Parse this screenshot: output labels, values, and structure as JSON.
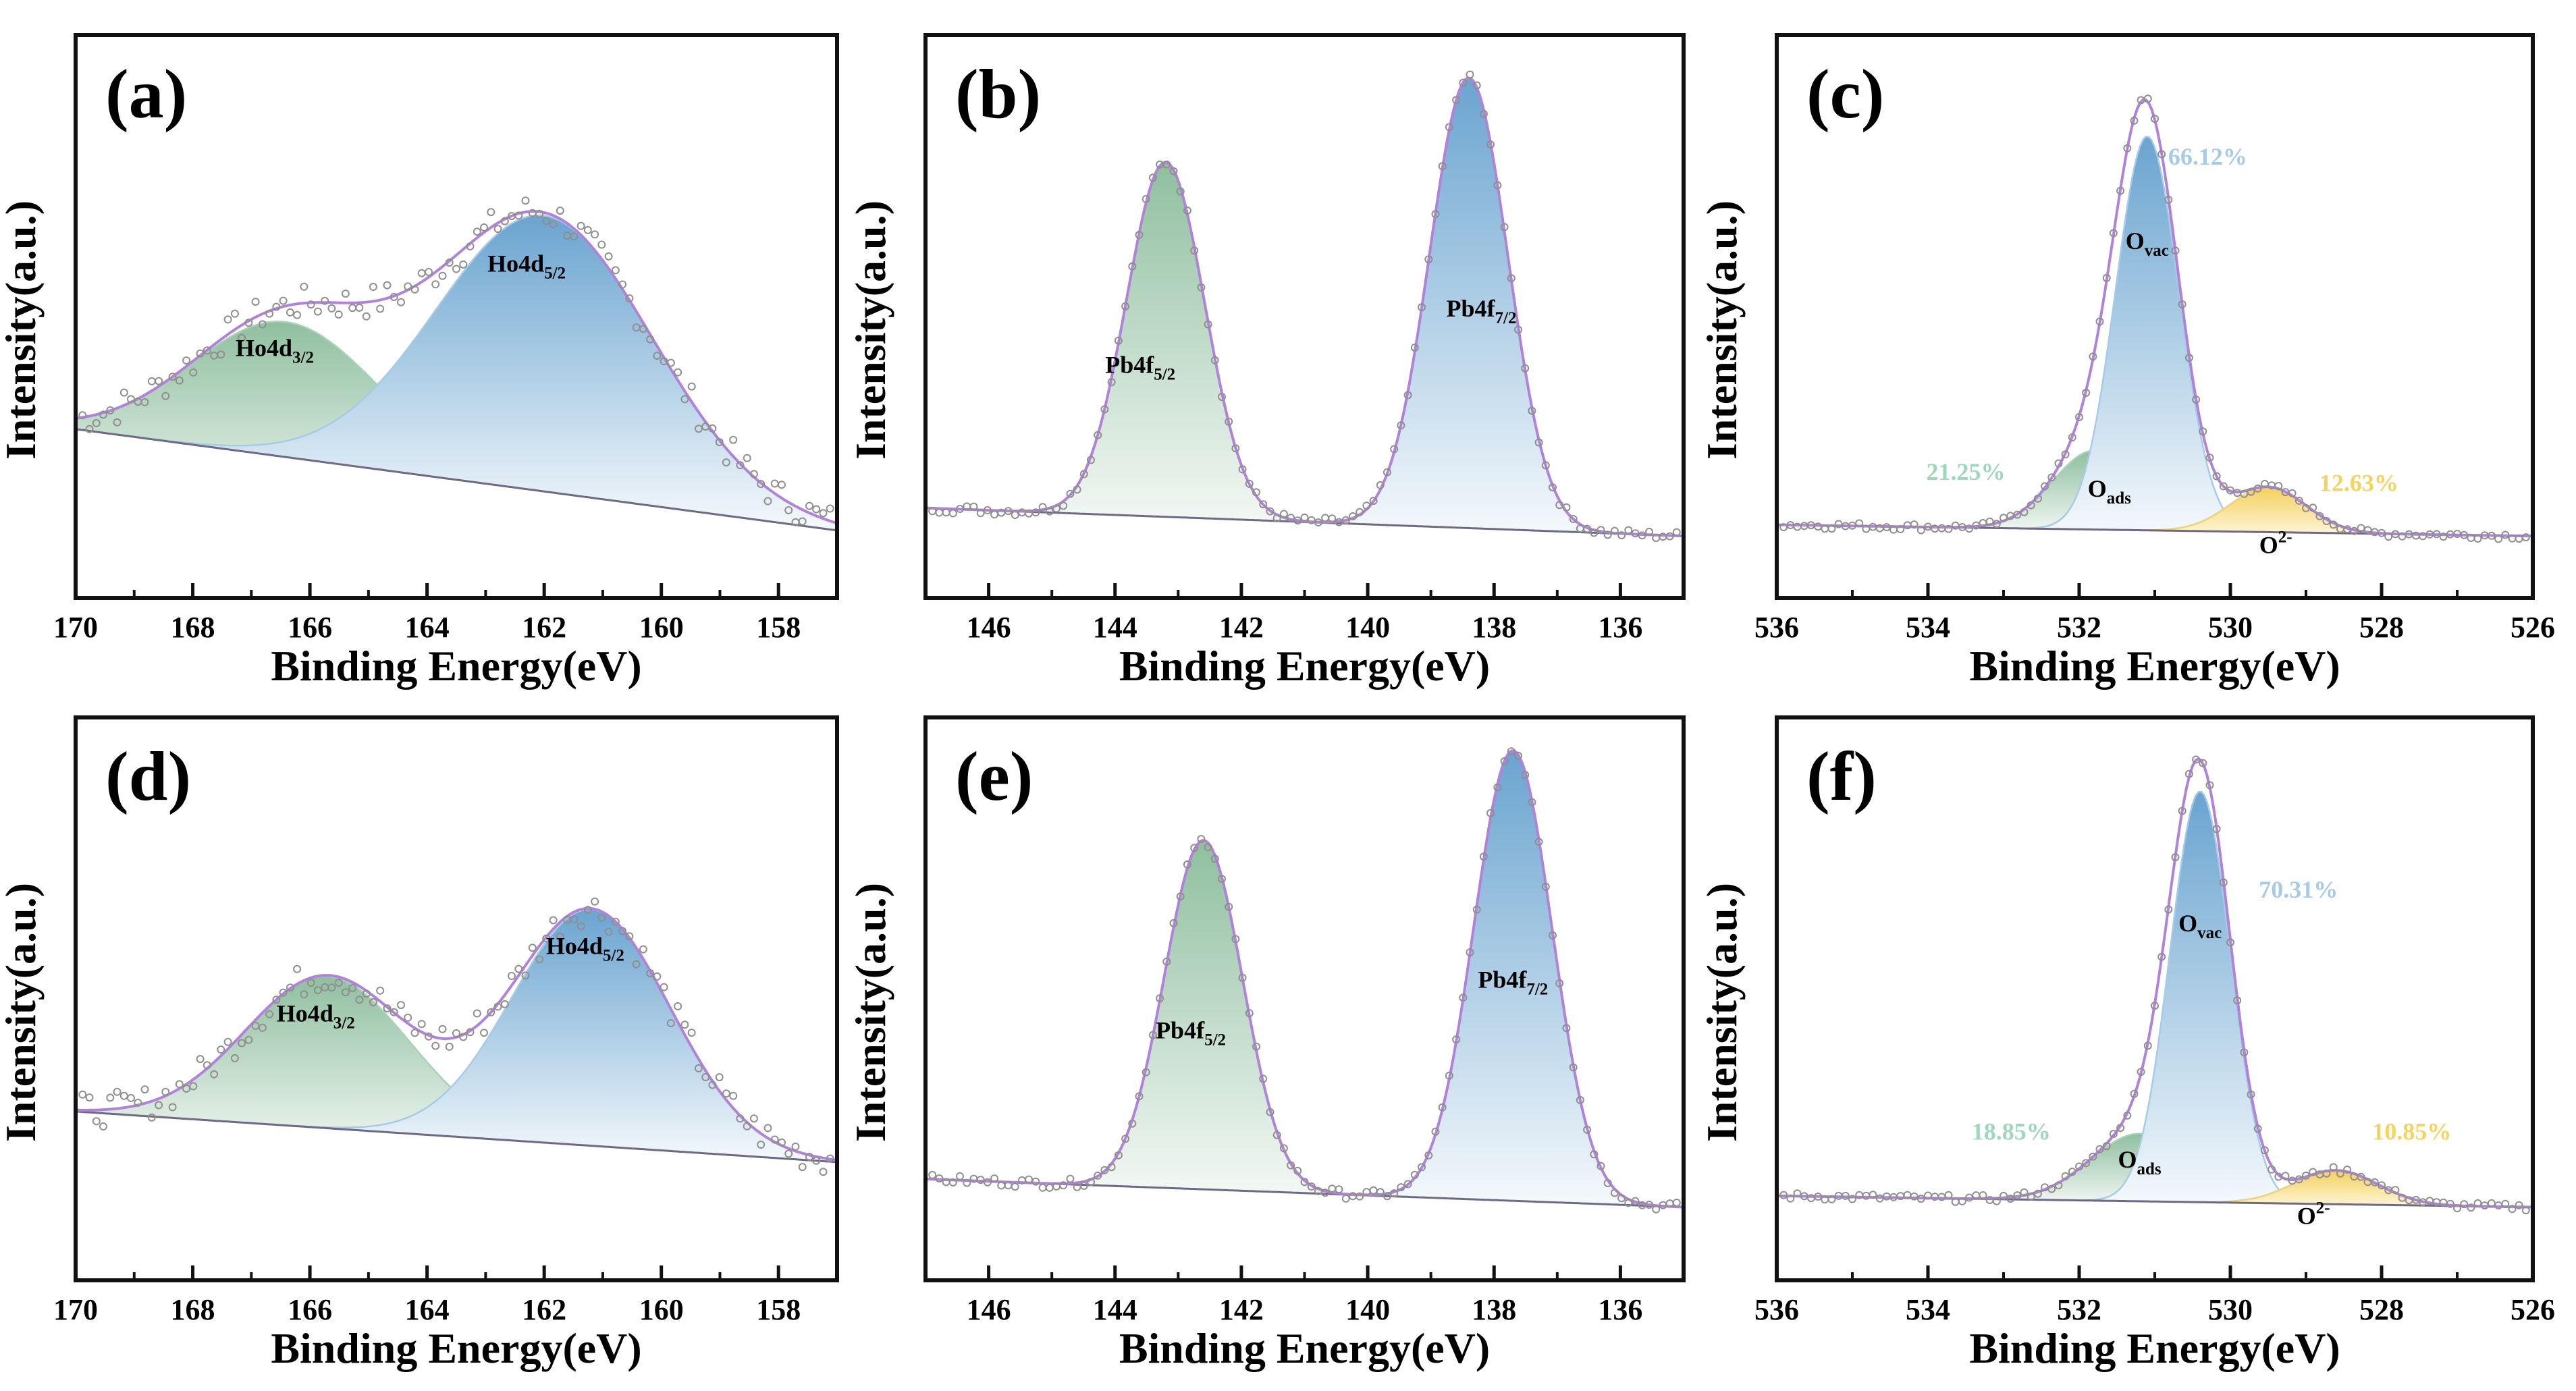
{
  "colors": {
    "fit": "#b183d8",
    "background_line": "#6e6a86",
    "raw_points": "#8f8f8f",
    "frame": "#111111",
    "green_top": "#8fbf9f",
    "blue_top": "#6aa4d0",
    "yellow_top": "#f5d05c",
    "pct_green": "#9fd7bd",
    "pct_blue": "#a6cbe3",
    "pct_yellow": "#f4d35e"
  },
  "chart_data": [
    {
      "id": "a",
      "title": "(a)",
      "type": "area",
      "xlabel": "Binding Energy(eV)",
      "ylabel": "Intensity(a.u.)",
      "xlim": [
        170,
        157
      ],
      "ylim": [
        0,
        1.0
      ],
      "xticks": [
        170,
        168,
        166,
        164,
        162,
        160,
        158
      ],
      "background": {
        "start": 0.3,
        "end": 0.12
      },
      "peaks": [
        {
          "center": 166.4,
          "height": 0.24,
          "sigma": 1.6,
          "color": "green",
          "label": "Ho4d",
          "sub": "3/2",
          "label_at": [
            166.6,
            0.43
          ]
        },
        {
          "center": 162.0,
          "height": 0.49,
          "sigma": 1.85,
          "color": "blue",
          "label": "Ho4d",
          "sub": "5/2",
          "label_at": [
            162.3,
            0.58
          ]
        }
      ],
      "raw_noise": 0.03,
      "percentages": []
    },
    {
      "id": "b",
      "title": "(b)",
      "type": "area",
      "xlabel": "Binding Energy(eV)",
      "ylabel": "Intensity(a.u.)",
      "xlim": [
        147,
        135
      ],
      "ylim": [
        0,
        1.0
      ],
      "xticks": [
        146,
        144,
        142,
        140,
        138,
        136
      ],
      "background": {
        "start": 0.16,
        "end": 0.11
      },
      "peaks": [
        {
          "center": 143.2,
          "height": 0.63,
          "sigma": 0.62,
          "color": "green",
          "label": "Pb4f",
          "sub": "5/2",
          "label_at": [
            143.6,
            0.4
          ]
        },
        {
          "center": 138.4,
          "height": 0.8,
          "sigma": 0.62,
          "color": "blue",
          "label": "Pb4f",
          "sub": "7/2",
          "label_at": [
            138.2,
            0.5
          ]
        }
      ],
      "raw_noise": 0.008,
      "percentages": []
    },
    {
      "id": "c",
      "title": "(c)",
      "type": "area",
      "xlabel": "Binding Energy(eV)",
      "ylabel": "Intensity(a.u.)",
      "xlim": [
        536,
        526
      ],
      "ylim": [
        0,
        1.0
      ],
      "xticks": [
        536,
        534,
        532,
        530,
        528,
        526
      ],
      "background": {
        "start": 0.13,
        "end": 0.11
      },
      "peaks": [
        {
          "center": 531.8,
          "height": 0.14,
          "sigma": 0.55,
          "color": "green",
          "label": "O",
          "sub": "ads",
          "label_at": [
            531.6,
            0.18
          ]
        },
        {
          "center": 531.1,
          "height": 0.7,
          "sigma": 0.42,
          "color": "blue",
          "label": "O",
          "sub": "vac",
          "label_at": [
            531.1,
            0.62
          ]
        },
        {
          "center": 529.5,
          "height": 0.08,
          "sigma": 0.5,
          "color": "yellow",
          "label": "O",
          "sub": "2-",
          "sup": true,
          "label_at": [
            529.4,
            0.08
          ]
        }
      ],
      "raw_noise": 0.006,
      "percentages": [
        {
          "text": "21.25%",
          "color": "green",
          "at": [
            533.5,
            0.21
          ]
        },
        {
          "text": "66.12%",
          "color": "blue",
          "at": [
            530.3,
            0.77
          ]
        },
        {
          "text": "12.63%",
          "color": "yellow",
          "at": [
            528.3,
            0.19
          ]
        }
      ]
    },
    {
      "id": "d",
      "title": "(d)",
      "type": "area",
      "xlabel": "Binding Energy(eV)",
      "ylabel": "Intensity(a.u.)",
      "xlim": [
        170,
        157
      ],
      "ylim": [
        0,
        1.0
      ],
      "xticks": [
        170,
        168,
        166,
        164,
        162,
        160,
        158
      ],
      "background": {
        "start": 0.3,
        "end": 0.21
      },
      "peaks": [
        {
          "center": 165.7,
          "height": 0.27,
          "sigma": 1.4,
          "color": "green",
          "label": "Ho4d",
          "sub": "3/2",
          "label_at": [
            165.9,
            0.46
          ]
        },
        {
          "center": 161.2,
          "height": 0.42,
          "sigma": 1.35,
          "color": "blue",
          "label": "Ho4d",
          "sub": "5/2",
          "label_at": [
            161.3,
            0.58
          ]
        }
      ],
      "raw_noise": 0.03,
      "percentages": []
    },
    {
      "id": "e",
      "title": "(e)",
      "type": "area",
      "xlabel": "Binding Energy(eV)",
      "ylabel": "Intensity(a.u.)",
      "xlim": [
        147,
        135
      ],
      "ylim": [
        0,
        1.0
      ],
      "xticks": [
        146,
        144,
        142,
        140,
        138,
        136
      ],
      "background": {
        "start": 0.18,
        "end": 0.13
      },
      "peaks": [
        {
          "center": 142.6,
          "height": 0.62,
          "sigma": 0.62,
          "color": "green",
          "label": "Pb4f",
          "sub": "5/2",
          "label_at": [
            142.8,
            0.43
          ]
        },
        {
          "center": 137.7,
          "height": 0.8,
          "sigma": 0.62,
          "color": "blue",
          "label": "Pb4f",
          "sub": "7/2",
          "label_at": [
            137.7,
            0.52
          ]
        }
      ],
      "raw_noise": 0.008,
      "percentages": []
    },
    {
      "id": "f",
      "title": "(f)",
      "type": "area",
      "xlabel": "Binding Energy(eV)",
      "ylabel": "Intensity(a.u.)",
      "xlim": [
        536,
        526
      ],
      "ylim": [
        0,
        1.0
      ],
      "xticks": [
        536,
        534,
        532,
        530,
        528,
        526
      ],
      "background": {
        "start": 0.15,
        "end": 0.13
      },
      "peaks": [
        {
          "center": 531.2,
          "height": 0.12,
          "sigma": 0.65,
          "color": "green",
          "label": "O",
          "sub": "ads",
          "label_at": [
            531.2,
            0.2
          ]
        },
        {
          "center": 530.4,
          "height": 0.73,
          "sigma": 0.4,
          "color": "blue",
          "label": "O",
          "sub": "vac",
          "label_at": [
            530.4,
            0.62
          ]
        },
        {
          "center": 528.6,
          "height": 0.06,
          "sigma": 0.55,
          "color": "yellow",
          "label": "O",
          "sub": "2-",
          "sup": true,
          "label_at": [
            528.9,
            0.1
          ]
        }
      ],
      "raw_noise": 0.006,
      "percentages": [
        {
          "text": "18.85%",
          "color": "green",
          "at": [
            532.9,
            0.25
          ]
        },
        {
          "text": "70.31%",
          "color": "blue",
          "at": [
            529.1,
            0.68
          ]
        },
        {
          "text": "10.85%",
          "color": "yellow",
          "at": [
            527.6,
            0.25
          ]
        }
      ]
    }
  ]
}
